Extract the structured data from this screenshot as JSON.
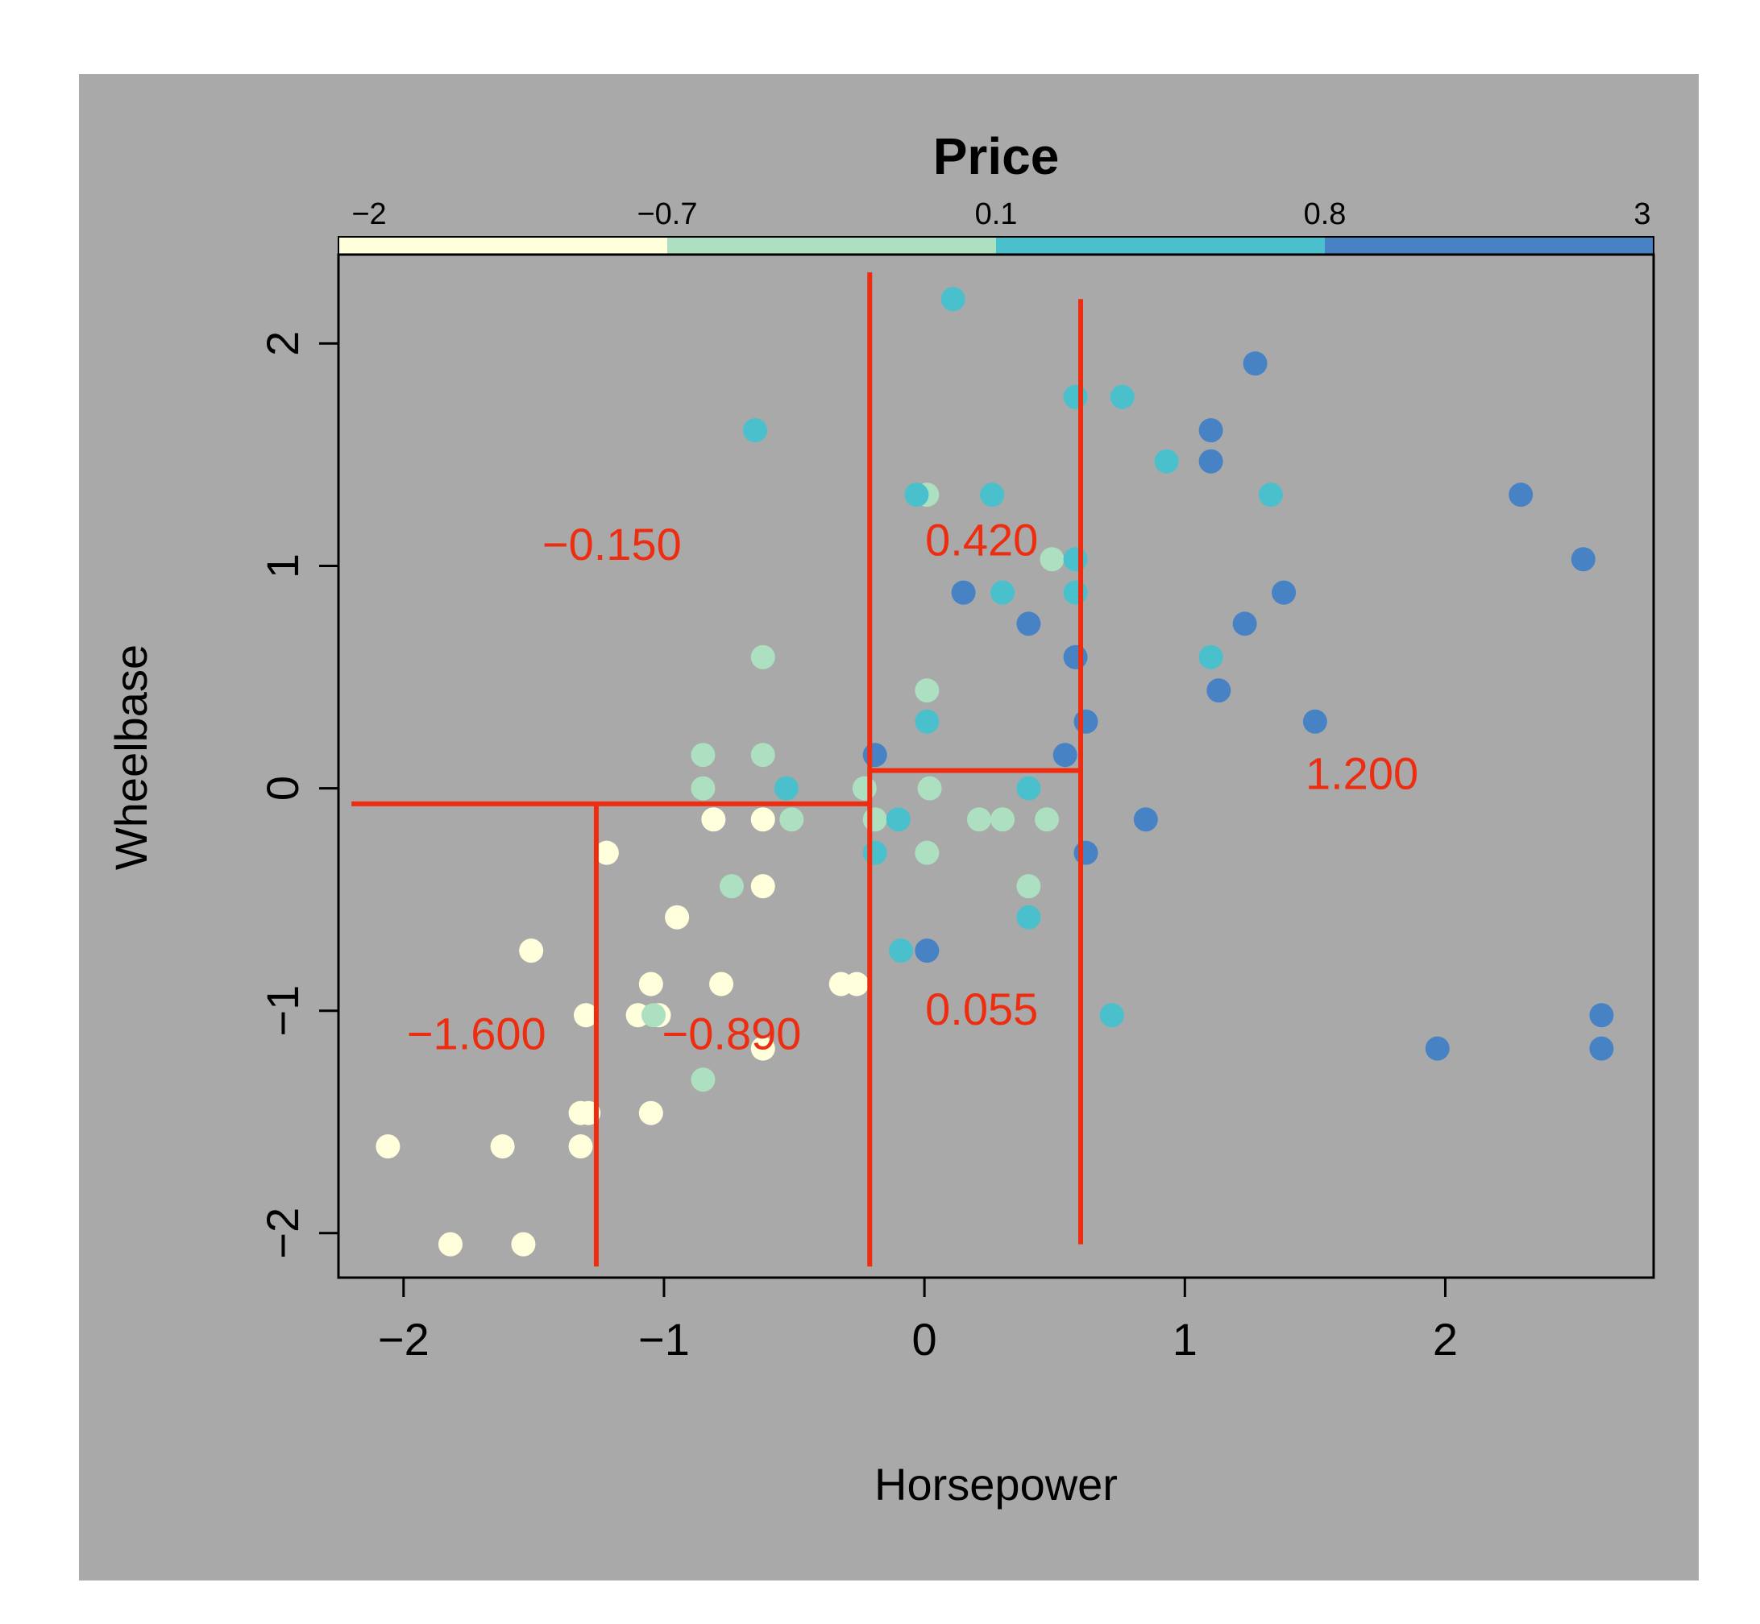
{
  "chart_data": {
    "type": "scatter",
    "title": "Price",
    "xlabel": "Horsepower",
    "ylabel": "Wheelbase",
    "xlim": [
      -2.25,
      2.8
    ],
    "ylim": [
      -2.2,
      2.4
    ],
    "xticks": [
      -2,
      -1,
      0,
      1,
      2
    ],
    "xtick_labels": [
      "−2",
      "−1",
      "0",
      "1",
      "2"
    ],
    "yticks": [
      -2,
      -1,
      0,
      1,
      2
    ],
    "ytick_labels": [
      "−2",
      "−1",
      "0",
      "1",
      "2"
    ],
    "colors": {
      "background": "#a9a9a9",
      "split_lines": "#ee2c10",
      "leaf_labels": "#ee2c10",
      "bins": [
        "#ffffdc",
        "#ace0c0",
        "#4ac0cc",
        "#4682c4"
      ]
    },
    "color_scale": {
      "breaks": [
        -2,
        -0.7,
        0.1,
        0.8,
        3
      ],
      "break_labels": [
        "−2",
        "−0.7",
        "0.1",
        "0.8",
        "3"
      ]
    },
    "points": [
      {
        "x": -2.06,
        "y": -1.61,
        "bin": 0
      },
      {
        "x": -1.82,
        "y": -2.05,
        "bin": 0
      },
      {
        "x": -1.62,
        "y": -1.61,
        "bin": 0
      },
      {
        "x": -1.54,
        "y": -2.05,
        "bin": 0
      },
      {
        "x": -1.51,
        "y": -0.73,
        "bin": 0
      },
      {
        "x": -1.32,
        "y": -1.61,
        "bin": 0
      },
      {
        "x": -1.32,
        "y": -1.46,
        "bin": 0
      },
      {
        "x": -1.29,
        "y": -1.46,
        "bin": 0
      },
      {
        "x": -1.3,
        "y": -1.02,
        "bin": 0
      },
      {
        "x": -1.22,
        "y": -0.29,
        "bin": 0
      },
      {
        "x": -1.1,
        "y": -1.02,
        "bin": 0
      },
      {
        "x": -1.05,
        "y": -0.88,
        "bin": 0
      },
      {
        "x": -1.05,
        "y": -1.46,
        "bin": 0
      },
      {
        "x": -1.02,
        "y": -1.02,
        "bin": 0
      },
      {
        "x": -0.95,
        "y": -0.58,
        "bin": 0
      },
      {
        "x": -0.81,
        "y": -0.14,
        "bin": 0
      },
      {
        "x": -0.78,
        "y": -0.88,
        "bin": 0
      },
      {
        "x": -0.62,
        "y": -0.14,
        "bin": 0
      },
      {
        "x": -0.62,
        "y": -0.44,
        "bin": 0
      },
      {
        "x": -0.62,
        "y": -1.17,
        "bin": 0
      },
      {
        "x": -0.32,
        "y": -0.88,
        "bin": 0
      },
      {
        "x": -0.26,
        "y": -0.88,
        "bin": 0
      },
      {
        "x": -1.04,
        "y": -1.02,
        "bin": 1
      },
      {
        "x": -0.85,
        "y": 0.15,
        "bin": 1
      },
      {
        "x": -0.85,
        "y": 0.0,
        "bin": 1
      },
      {
        "x": -0.85,
        "y": -1.31,
        "bin": 1
      },
      {
        "x": -0.74,
        "y": -0.44,
        "bin": 1
      },
      {
        "x": -0.62,
        "y": 0.59,
        "bin": 1
      },
      {
        "x": -0.62,
        "y": 0.15,
        "bin": 1
      },
      {
        "x": -0.51,
        "y": -0.14,
        "bin": 1
      },
      {
        "x": -0.23,
        "y": 0.0,
        "bin": 1
      },
      {
        "x": -0.19,
        "y": -0.14,
        "bin": 1
      },
      {
        "x": 0.01,
        "y": 1.32,
        "bin": 1
      },
      {
        "x": 0.01,
        "y": 0.44,
        "bin": 1
      },
      {
        "x": 0.02,
        "y": 0.0,
        "bin": 1
      },
      {
        "x": 0.01,
        "y": -0.29,
        "bin": 1
      },
      {
        "x": 0.21,
        "y": -0.14,
        "bin": 1
      },
      {
        "x": 0.3,
        "y": -0.14,
        "bin": 1
      },
      {
        "x": 0.4,
        "y": -0.44,
        "bin": 1
      },
      {
        "x": 0.47,
        "y": -0.14,
        "bin": 1
      },
      {
        "x": 0.49,
        "y": 1.03,
        "bin": 1
      },
      {
        "x": -0.65,
        "y": 1.61,
        "bin": 2
      },
      {
        "x": -0.53,
        "y": 0.0,
        "bin": 2
      },
      {
        "x": -0.19,
        "y": -0.29,
        "bin": 2
      },
      {
        "x": -0.1,
        "y": -0.14,
        "bin": 2
      },
      {
        "x": -0.09,
        "y": -0.73,
        "bin": 2
      },
      {
        "x": -0.03,
        "y": 1.32,
        "bin": 2
      },
      {
        "x": 0.01,
        "y": 0.3,
        "bin": 2
      },
      {
        "x": 0.11,
        "y": 2.2,
        "bin": 2
      },
      {
        "x": 0.26,
        "y": 1.32,
        "bin": 2
      },
      {
        "x": 0.3,
        "y": 0.88,
        "bin": 2
      },
      {
        "x": 0.4,
        "y": 0.0,
        "bin": 2
      },
      {
        "x": 0.4,
        "y": -0.58,
        "bin": 2
      },
      {
        "x": 0.58,
        "y": 1.76,
        "bin": 2
      },
      {
        "x": 0.58,
        "y": 1.03,
        "bin": 2
      },
      {
        "x": 0.58,
        "y": 0.88,
        "bin": 2
      },
      {
        "x": 0.72,
        "y": -1.02,
        "bin": 2
      },
      {
        "x": 0.76,
        "y": 1.76,
        "bin": 2
      },
      {
        "x": 0.93,
        "y": 1.47,
        "bin": 2
      },
      {
        "x": 1.1,
        "y": 0.59,
        "bin": 2
      },
      {
        "x": 1.33,
        "y": 1.32,
        "bin": 2
      },
      {
        "x": -0.19,
        "y": 0.15,
        "bin": 3
      },
      {
        "x": 0.01,
        "y": -0.73,
        "bin": 3
      },
      {
        "x": 0.15,
        "y": 0.88,
        "bin": 3
      },
      {
        "x": 0.4,
        "y": 0.74,
        "bin": 3
      },
      {
        "x": 0.54,
        "y": 0.15,
        "bin": 3
      },
      {
        "x": 0.58,
        "y": 0.59,
        "bin": 3
      },
      {
        "x": 0.62,
        "y": 0.3,
        "bin": 3
      },
      {
        "x": 0.62,
        "y": -0.29,
        "bin": 3
      },
      {
        "x": 0.85,
        "y": -0.14,
        "bin": 3
      },
      {
        "x": 1.1,
        "y": 1.61,
        "bin": 3
      },
      {
        "x": 1.1,
        "y": 1.47,
        "bin": 3
      },
      {
        "x": 1.13,
        "y": 0.44,
        "bin": 3
      },
      {
        "x": 1.27,
        "y": 1.91,
        "bin": 3
      },
      {
        "x": 1.23,
        "y": 0.74,
        "bin": 3
      },
      {
        "x": 1.38,
        "y": 0.88,
        "bin": 3
      },
      {
        "x": 1.5,
        "y": 0.3,
        "bin": 3
      },
      {
        "x": 1.97,
        "y": -1.17,
        "bin": 3
      },
      {
        "x": 2.29,
        "y": 1.32,
        "bin": 3
      },
      {
        "x": 2.53,
        "y": 1.03,
        "bin": 3
      },
      {
        "x": 2.6,
        "y": -1.02,
        "bin": 3
      },
      {
        "x": 2.6,
        "y": -1.17,
        "bin": 3
      }
    ],
    "splits": [
      {
        "x1": -2.2,
        "y1": -0.07,
        "x2": -0.21,
        "y2": -0.07
      },
      {
        "x1": -1.26,
        "y1": -2.15,
        "x2": -1.26,
        "y2": -0.07
      },
      {
        "x1": -0.21,
        "y1": -2.15,
        "x2": -0.21,
        "y2": 2.32
      },
      {
        "x1": -0.21,
        "y1": 0.08,
        "x2": 0.6,
        "y2": 0.08
      },
      {
        "x1": 0.6,
        "y1": -2.05,
        "x2": 0.6,
        "y2": 2.2
      }
    ],
    "leaves": [
      {
        "label": "−0.150",
        "x": -1.2,
        "y": 1.1
      },
      {
        "label": "0.420",
        "x": 0.22,
        "y": 1.12
      },
      {
        "label": "1.200",
        "x": 1.68,
        "y": 0.07
      },
      {
        "label": "0.055",
        "x": 0.22,
        "y": -0.99
      },
      {
        "label": "−1.600",
        "x": -1.72,
        "y": -1.1
      },
      {
        "label": "−0.890",
        "x": -0.74,
        "y": -1.1
      }
    ]
  }
}
